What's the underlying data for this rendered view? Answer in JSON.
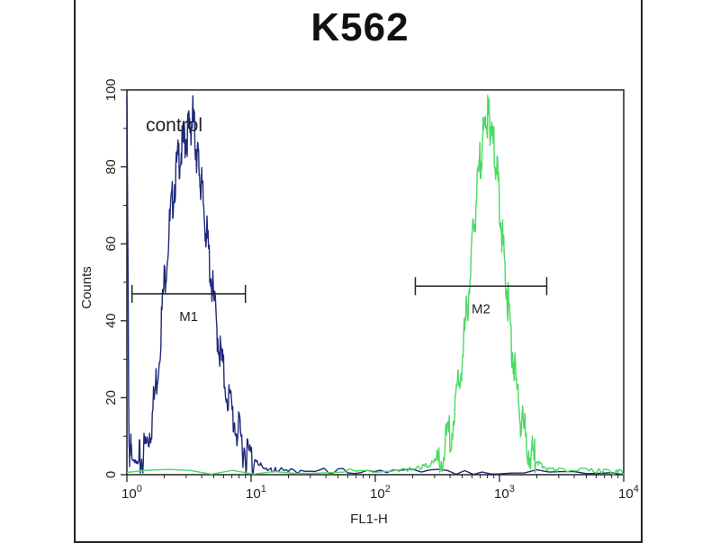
{
  "chart_data": {
    "type": "histogram",
    "title": "K562",
    "xlabel": "FL1-H",
    "ylabel": "Counts",
    "x_scale": "log",
    "xlim": [
      1,
      10000
    ],
    "ylim": [
      0,
      100
    ],
    "x_ticks": [
      {
        "base": "10",
        "exp": "0"
      },
      {
        "base": "10",
        "exp": "1"
      },
      {
        "base": "10",
        "exp": "2"
      },
      {
        "base": "10",
        "exp": "3"
      },
      {
        "base": "10",
        "exp": "4"
      }
    ],
    "x_tick_values": [
      1,
      10,
      100,
      1000,
      10000
    ],
    "y_ticks": [
      "0",
      "20",
      "40",
      "60",
      "80",
      "100"
    ],
    "y_tick_values": [
      0,
      20,
      40,
      60,
      80,
      100
    ],
    "annotation": "control",
    "series": [
      {
        "color": "#1f2a7a",
        "points": [
          [
            1.0,
            98
          ],
          [
            1.04,
            8
          ],
          [
            1.1,
            3
          ],
          [
            1.2,
            2
          ],
          [
            1.3,
            4
          ],
          [
            1.45,
            8
          ],
          [
            1.6,
            15
          ],
          [
            1.8,
            30
          ],
          [
            2.0,
            50
          ],
          [
            2.2,
            64
          ],
          [
            2.4,
            75
          ],
          [
            2.6,
            82
          ],
          [
            2.8,
            85
          ],
          [
            3.0,
            88
          ],
          [
            3.2,
            90
          ],
          [
            3.4,
            93
          ],
          [
            3.6,
            85
          ],
          [
            3.8,
            80
          ],
          [
            4.0,
            74
          ],
          [
            4.3,
            65
          ],
          [
            4.6,
            56
          ],
          [
            5.0,
            45
          ],
          [
            5.5,
            34
          ],
          [
            6.0,
            26
          ],
          [
            6.8,
            18
          ],
          [
            7.6,
            12
          ],
          [
            8.5,
            8
          ],
          [
            9.5,
            5
          ],
          [
            11,
            2.5
          ],
          [
            13,
            1
          ],
          [
            16,
            0.5
          ],
          [
            25,
            0.3
          ],
          [
            60,
            0.2
          ],
          [
            200,
            0.1
          ],
          [
            1000,
            0
          ],
          [
            10000,
            0
          ]
        ]
      },
      {
        "color": "#4cd964",
        "points": [
          [
            1.0,
            0
          ],
          [
            50,
            0.2
          ],
          [
            150,
            0.4
          ],
          [
            220,
            1
          ],
          [
            280,
            2
          ],
          [
            330,
            4
          ],
          [
            380,
            8
          ],
          [
            430,
            15
          ],
          [
            480,
            25
          ],
          [
            530,
            38
          ],
          [
            580,
            52
          ],
          [
            630,
            66
          ],
          [
            680,
            78
          ],
          [
            730,
            87
          ],
          [
            780,
            92
          ],
          [
            820,
            93
          ],
          [
            860,
            90
          ],
          [
            920,
            82
          ],
          [
            980,
            75
          ],
          [
            1050,
            62
          ],
          [
            1130,
            50
          ],
          [
            1220,
            38
          ],
          [
            1320,
            27
          ],
          [
            1450,
            17
          ],
          [
            1600,
            10
          ],
          [
            1800,
            5
          ],
          [
            2000,
            2.5
          ],
          [
            2300,
            1
          ],
          [
            3000,
            0.4
          ],
          [
            5000,
            0.2
          ],
          [
            8000,
            0.1
          ],
          [
            10000,
            0
          ]
        ]
      }
    ],
    "gates": [
      {
        "label": "M1",
        "x_start": 1.1,
        "x_end": 9.0,
        "y": 47
      },
      {
        "label": "M2",
        "x_start": 210,
        "x_end": 2400,
        "y": 49
      }
    ]
  }
}
